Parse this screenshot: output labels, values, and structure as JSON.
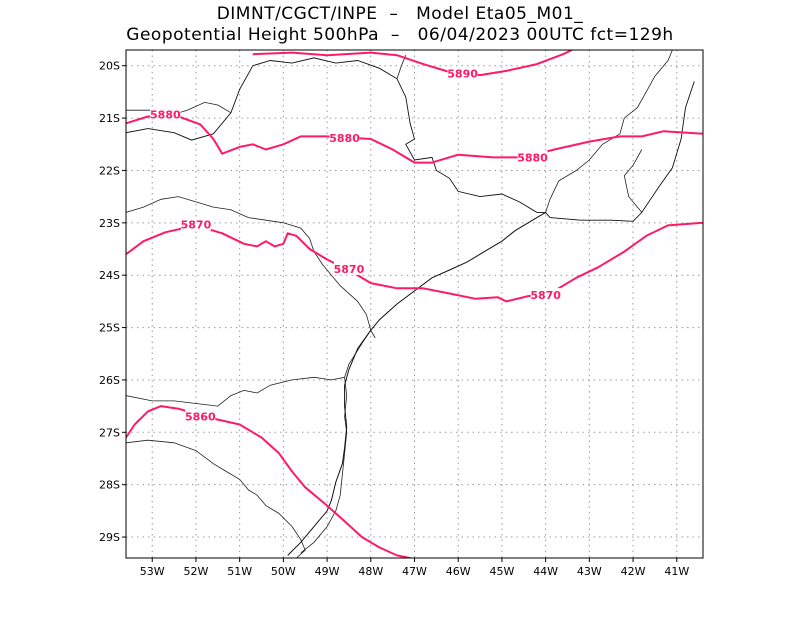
{
  "header": {
    "line1": "DIMNT/CGCT/INPE  –   Model Eta05_M01_",
    "line2": "Geopotential Height 500hPa  –   06/04/2023 00UTC fct=129h"
  },
  "map": {
    "lon_range": [
      -53.6,
      -40.4
    ],
    "lat_range": [
      -29.4,
      -19.7
    ],
    "lon_ticks": [
      {
        "value": -53,
        "label": "53W"
      },
      {
        "value": -52,
        "label": "52W"
      },
      {
        "value": -51,
        "label": "51W"
      },
      {
        "value": -50,
        "label": "50W"
      },
      {
        "value": -49,
        "label": "49W"
      },
      {
        "value": -48,
        "label": "48W"
      },
      {
        "value": -47,
        "label": "47W"
      },
      {
        "value": -46,
        "label": "46W"
      },
      {
        "value": -45,
        "label": "45W"
      },
      {
        "value": -44,
        "label": "44W"
      },
      {
        "value": -43,
        "label": "43W"
      },
      {
        "value": -42,
        "label": "42W"
      },
      {
        "value": -41,
        "label": "41W"
      }
    ],
    "lat_ticks": [
      {
        "value": -20,
        "label": "20S"
      },
      {
        "value": -21,
        "label": "21S"
      },
      {
        "value": -22,
        "label": "22S"
      },
      {
        "value": -23,
        "label": "23S"
      },
      {
        "value": -24,
        "label": "24S"
      },
      {
        "value": -25,
        "label": "25S"
      },
      {
        "value": -26,
        "label": "26S"
      },
      {
        "value": -27,
        "label": "27S"
      },
      {
        "value": -28,
        "label": "28S"
      },
      {
        "value": -29,
        "label": "29S"
      }
    ],
    "grid": "dotted",
    "contour_color": "#ff1a66",
    "contours": [
      {
        "value": "5890",
        "labels": [
          [
            -45.9,
            -20.15
          ]
        ],
        "points": [
          [
            -50.7,
            -19.78
          ],
          [
            -49.8,
            -19.75
          ],
          [
            -49.0,
            -19.8
          ],
          [
            -48.0,
            -19.75
          ],
          [
            -47.4,
            -19.8
          ],
          [
            -46.8,
            -19.97
          ],
          [
            -46.2,
            -20.12
          ],
          [
            -45.5,
            -20.18
          ],
          [
            -44.9,
            -20.1
          ],
          [
            -44.2,
            -19.97
          ],
          [
            -43.6,
            -19.78
          ],
          [
            -43.4,
            -19.7
          ]
        ]
      },
      {
        "value": "5880",
        "labels": [
          [
            -52.7,
            -20.93
          ],
          [
            -48.6,
            -21.38
          ],
          [
            -44.3,
            -21.75
          ]
        ],
        "points": [
          [
            -53.6,
            -21.1
          ],
          [
            -53.1,
            -20.97
          ],
          [
            -52.4,
            -20.97
          ],
          [
            -51.9,
            -21.12
          ],
          [
            -51.6,
            -21.4
          ],
          [
            -51.4,
            -21.68
          ],
          [
            -51.0,
            -21.55
          ],
          [
            -50.7,
            -21.5
          ],
          [
            -50.4,
            -21.6
          ],
          [
            -50.0,
            -21.5
          ],
          [
            -49.6,
            -21.35
          ],
          [
            -49.0,
            -21.35
          ],
          [
            -48.0,
            -21.4
          ],
          [
            -47.5,
            -21.6
          ],
          [
            -47.0,
            -21.85
          ],
          [
            -46.6,
            -21.85
          ],
          [
            -46.0,
            -21.7
          ],
          [
            -45.2,
            -21.75
          ],
          [
            -44.5,
            -21.75
          ],
          [
            -43.8,
            -21.6
          ],
          [
            -43.0,
            -21.45
          ],
          [
            -42.3,
            -21.35
          ],
          [
            -41.8,
            -21.35
          ],
          [
            -41.3,
            -21.25
          ],
          [
            -40.4,
            -21.3
          ]
        ]
      },
      {
        "value": "5870",
        "labels": [
          [
            -52.0,
            -23.03
          ],
          [
            -48.5,
            -23.88
          ],
          [
            -44.0,
            -24.38
          ]
        ],
        "points": [
          [
            -53.6,
            -23.6
          ],
          [
            -53.2,
            -23.35
          ],
          [
            -52.7,
            -23.18
          ],
          [
            -52.0,
            -23.05
          ],
          [
            -51.4,
            -23.2
          ],
          [
            -50.9,
            -23.4
          ],
          [
            -50.6,
            -23.45
          ],
          [
            -50.4,
            -23.35
          ],
          [
            -50.2,
            -23.45
          ],
          [
            -50.0,
            -23.4
          ],
          [
            -49.9,
            -23.2
          ],
          [
            -49.7,
            -23.25
          ],
          [
            -49.4,
            -23.5
          ],
          [
            -49.0,
            -23.7
          ],
          [
            -48.4,
            -23.95
          ],
          [
            -48.0,
            -24.15
          ],
          [
            -47.4,
            -24.25
          ],
          [
            -46.8,
            -24.25
          ],
          [
            -46.2,
            -24.35
          ],
          [
            -45.6,
            -24.45
          ],
          [
            -45.1,
            -24.42
          ],
          [
            -44.9,
            -24.5
          ],
          [
            -44.4,
            -24.4
          ],
          [
            -43.9,
            -24.35
          ],
          [
            -43.3,
            -24.05
          ],
          [
            -42.8,
            -23.85
          ],
          [
            -42.2,
            -23.55
          ],
          [
            -41.7,
            -23.25
          ],
          [
            -41.2,
            -23.05
          ],
          [
            -40.4,
            -23.0
          ]
        ]
      },
      {
        "value": "5860",
        "labels": [
          [
            -51.9,
            -26.7
          ]
        ],
        "points": [
          [
            -53.6,
            -27.1
          ],
          [
            -53.4,
            -26.85
          ],
          [
            -53.1,
            -26.6
          ],
          [
            -52.8,
            -26.5
          ],
          [
            -52.4,
            -26.55
          ],
          [
            -51.8,
            -26.7
          ],
          [
            -51.0,
            -26.85
          ],
          [
            -50.5,
            -27.1
          ],
          [
            -50.1,
            -27.4
          ],
          [
            -49.8,
            -27.75
          ],
          [
            -49.5,
            -28.05
          ],
          [
            -49.0,
            -28.4
          ],
          [
            -48.6,
            -28.7
          ],
          [
            -48.2,
            -29.0
          ],
          [
            -47.8,
            -29.2
          ],
          [
            -47.4,
            -29.35
          ],
          [
            -47.0,
            -29.42
          ]
        ]
      }
    ],
    "coastline": [
      [
        -54.0,
        -21.5
      ],
      [
        -53.6,
        -21.28
      ],
      [
        -53.1,
        -21.2
      ],
      [
        -52.5,
        -21.28
      ],
      [
        -52.1,
        -21.42
      ],
      [
        -51.6,
        -21.3
      ],
      [
        -51.2,
        -20.9
      ],
      [
        -51.0,
        -20.45
      ],
      [
        -50.7,
        -20.0
      ],
      [
        -50.3,
        -19.9
      ],
      [
        -49.8,
        -19.95
      ],
      [
        -49.3,
        -19.85
      ],
      [
        -48.8,
        -19.95
      ],
      [
        -48.3,
        -19.9
      ],
      [
        -47.8,
        -20.05
      ],
      [
        -47.4,
        -20.25
      ],
      [
        -47.2,
        -20.6
      ],
      [
        -47.1,
        -21.1
      ],
      [
        -47.0,
        -21.4
      ],
      [
        -47.2,
        -21.5
      ],
      [
        -47.0,
        -21.8
      ],
      [
        -46.6,
        -21.75
      ],
      [
        -46.5,
        -22.0
      ],
      [
        -46.2,
        -22.15
      ],
      [
        -46.0,
        -22.4
      ],
      [
        -45.5,
        -22.5
      ],
      [
        -45.0,
        -22.45
      ],
      [
        -44.6,
        -22.6
      ],
      [
        -44.2,
        -22.8
      ],
      [
        -44.0,
        -22.8
      ],
      [
        -43.9,
        -22.9
      ],
      [
        -43.2,
        -22.95
      ],
      [
        -42.5,
        -22.95
      ],
      [
        -42.0,
        -22.97
      ],
      [
        -41.8,
        -22.8
      ],
      [
        -41.4,
        -22.3
      ],
      [
        -41.1,
        -21.95
      ],
      [
        -40.9,
        -21.4
      ],
      [
        -40.8,
        -20.8
      ],
      [
        -40.6,
        -20.3
      ]
    ],
    "boundaries": [
      [
        [
          -53.6,
          -22.8
        ],
        [
          -53.2,
          -22.7
        ],
        [
          -52.8,
          -22.55
        ],
        [
          -52.4,
          -22.5
        ],
        [
          -52.0,
          -22.6
        ],
        [
          -51.6,
          -22.7
        ],
        [
          -51.2,
          -22.75
        ],
        [
          -50.8,
          -22.9
        ],
        [
          -50.4,
          -22.95
        ],
        [
          -50.0,
          -23.0
        ],
        [
          -49.6,
          -23.1
        ],
        [
          -49.4,
          -23.3
        ],
        [
          -49.3,
          -23.55
        ],
        [
          -49.1,
          -23.8
        ],
        [
          -48.7,
          -24.2
        ],
        [
          -48.3,
          -24.5
        ],
        [
          -48.1,
          -24.75
        ],
        [
          -48.0,
          -25.05
        ],
        [
          -47.9,
          -25.2
        ]
      ],
      [
        [
          -53.6,
          -26.3
        ],
        [
          -53.0,
          -26.4
        ],
        [
          -52.5,
          -26.4
        ],
        [
          -52.0,
          -26.45
        ],
        [
          -51.5,
          -26.5
        ],
        [
          -51.2,
          -26.3
        ],
        [
          -50.9,
          -26.2
        ],
        [
          -50.6,
          -26.25
        ],
        [
          -50.3,
          -26.1
        ],
        [
          -49.8,
          -26.0
        ],
        [
          -49.3,
          -25.95
        ],
        [
          -48.9,
          -26.0
        ],
        [
          -48.6,
          -25.95
        ]
      ],
      [
        [
          -53.6,
          -27.2
        ],
        [
          -53.1,
          -27.15
        ],
        [
          -52.5,
          -27.2
        ],
        [
          -52.0,
          -27.35
        ],
        [
          -51.6,
          -27.6
        ],
        [
          -51.3,
          -27.75
        ],
        [
          -51.0,
          -27.9
        ],
        [
          -50.8,
          -28.1
        ],
        [
          -50.6,
          -28.2
        ],
        [
          -50.4,
          -28.4
        ],
        [
          -50.1,
          -28.55
        ],
        [
          -49.8,
          -28.8
        ],
        [
          -49.6,
          -29.05
        ],
        [
          -49.5,
          -29.25
        ],
        [
          -49.7,
          -29.4
        ]
      ],
      [
        [
          -48.6,
          -25.95
        ],
        [
          -48.55,
          -26.3
        ],
        [
          -48.6,
          -26.7
        ],
        [
          -48.55,
          -27.0
        ],
        [
          -48.6,
          -27.4
        ],
        [
          -48.65,
          -27.8
        ],
        [
          -48.7,
          -28.2
        ],
        [
          -48.8,
          -28.5
        ],
        [
          -49.0,
          -28.8
        ],
        [
          -49.3,
          -29.1
        ],
        [
          -49.6,
          -29.3
        ]
      ],
      [
        [
          -48.0,
          -25.05
        ],
        [
          -48.2,
          -25.3
        ],
        [
          -48.35,
          -25.5
        ],
        [
          -48.5,
          -25.7
        ],
        [
          -48.6,
          -25.95
        ]
      ],
      [
        [
          -44.0,
          -22.8
        ],
        [
          -43.9,
          -22.55
        ],
        [
          -43.7,
          -22.2
        ],
        [
          -43.3,
          -22.0
        ],
        [
          -43.0,
          -21.8
        ],
        [
          -42.7,
          -21.5
        ],
        [
          -42.3,
          -21.3
        ],
        [
          -42.2,
          -21.0
        ],
        [
          -41.9,
          -20.8
        ],
        [
          -41.7,
          -20.5
        ],
        [
          -41.5,
          -20.2
        ],
        [
          -41.2,
          -19.9
        ],
        [
          -41.1,
          -19.7
        ]
      ],
      [
        [
          -41.8,
          -22.8
        ],
        [
          -42.1,
          -22.5
        ],
        [
          -42.2,
          -22.1
        ],
        [
          -42.0,
          -21.9
        ],
        [
          -41.8,
          -21.6
        ]
      ],
      [
        [
          -47.4,
          -20.25
        ],
        [
          -47.3,
          -20.0
        ],
        [
          -47.2,
          -19.8
        ]
      ],
      [
        [
          -51.2,
          -20.9
        ],
        [
          -51.5,
          -20.75
        ],
        [
          -51.8,
          -20.7
        ],
        [
          -52.2,
          -20.85
        ],
        [
          -52.6,
          -20.95
        ],
        [
          -53.0,
          -20.85
        ],
        [
          -53.6,
          -20.85
        ]
      ]
    ],
    "coast_sea": [
      [
        [
          -44.0,
          -22.8
        ],
        [
          -44.3,
          -22.95
        ],
        [
          -44.7,
          -23.15
        ],
        [
          -45.0,
          -23.35
        ],
        [
          -45.4,
          -23.55
        ],
        [
          -45.8,
          -23.75
        ],
        [
          -46.2,
          -23.9
        ],
        [
          -46.6,
          -24.05
        ],
        [
          -47.0,
          -24.3
        ],
        [
          -47.4,
          -24.55
        ],
        [
          -47.8,
          -24.85
        ],
        [
          -48.0,
          -25.05
        ],
        [
          -48.3,
          -25.4
        ],
        [
          -48.5,
          -25.8
        ],
        [
          -48.6,
          -26.1
        ],
        [
          -48.6,
          -26.5
        ],
        [
          -48.55,
          -26.9
        ],
        [
          -48.6,
          -27.3
        ],
        [
          -48.65,
          -27.6
        ],
        [
          -48.8,
          -27.95
        ],
        [
          -48.9,
          -28.3
        ],
        [
          -49.0,
          -28.5
        ],
        [
          -49.3,
          -28.8
        ],
        [
          -49.6,
          -29.1
        ],
        [
          -49.9,
          -29.35
        ]
      ]
    ]
  }
}
